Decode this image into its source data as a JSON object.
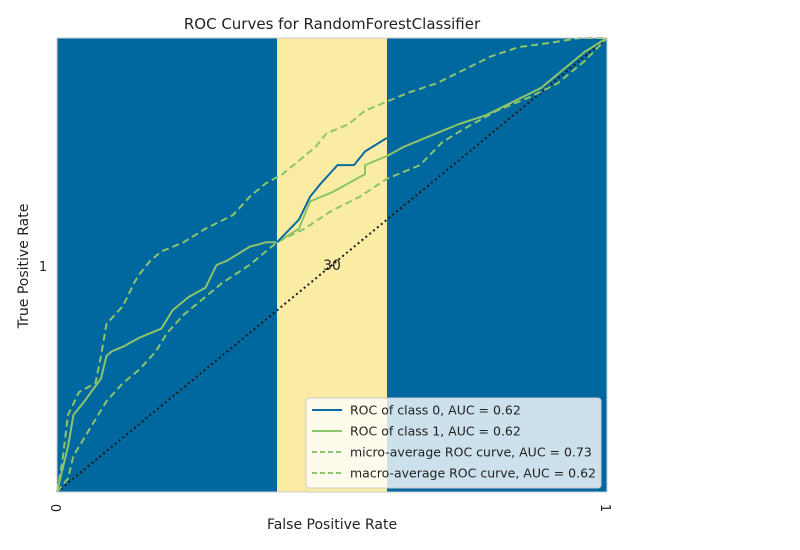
{
  "chart_data": {
    "type": "line",
    "title": "ROC Curves for RandomForestClassifier",
    "xlabel": "False Positive Rate",
    "ylabel": "True Positive Rate",
    "xlim": [
      0,
      1
    ],
    "ylim": [
      0,
      1
    ],
    "x_ticks": [
      "0",
      "1"
    ],
    "y_tick": {
      "label": "1",
      "value": 0.5
    },
    "grid": false,
    "legend_position": "lower-right",
    "colors": {
      "background": "#00689f",
      "band": "#fbeca4",
      "class0": "#0b6aa2",
      "green": "#8cc46a",
      "diagonal": "#1a1a1a",
      "frame": "#cccccc"
    },
    "band": {
      "x": [
        0.4,
        0.6
      ]
    },
    "annotation": {
      "text": "30",
      "x": 0.5,
      "y": 0.5
    },
    "series": [
      {
        "name": "ROC of class 0, AUC = 0.62",
        "style": "solid",
        "color": "#0b6aa2",
        "points": [
          [
            0.4,
            0.55
          ],
          [
            0.44,
            0.6
          ],
          [
            0.46,
            0.65
          ],
          [
            0.48,
            0.68
          ],
          [
            0.51,
            0.72
          ],
          [
            0.54,
            0.72
          ],
          [
            0.56,
            0.75
          ],
          [
            0.6,
            0.78
          ]
        ]
      },
      {
        "name": "ROC of class 1, AUC = 0.62",
        "style": "solid",
        "color": "#8cc46a",
        "points": [
          [
            0,
            0
          ],
          [
            0.01,
            0.05
          ],
          [
            0.02,
            0.1
          ],
          [
            0.03,
            0.17
          ],
          [
            0.05,
            0.2
          ],
          [
            0.08,
            0.25
          ],
          [
            0.09,
            0.3
          ],
          [
            0.1,
            0.31
          ],
          [
            0.12,
            0.32
          ],
          [
            0.15,
            0.34
          ],
          [
            0.19,
            0.36
          ],
          [
            0.21,
            0.4
          ],
          [
            0.24,
            0.43
          ],
          [
            0.27,
            0.45
          ],
          [
            0.29,
            0.5
          ],
          [
            0.31,
            0.51
          ],
          [
            0.35,
            0.54
          ],
          [
            0.38,
            0.55
          ],
          [
            0.4,
            0.55
          ],
          [
            0.44,
            0.58
          ],
          [
            0.46,
            0.64
          ],
          [
            0.5,
            0.66
          ],
          [
            0.53,
            0.68
          ],
          [
            0.56,
            0.7
          ],
          [
            0.56,
            0.72
          ],
          [
            0.6,
            0.74
          ],
          [
            0.63,
            0.76
          ],
          [
            0.69,
            0.79
          ],
          [
            0.73,
            0.81
          ],
          [
            0.78,
            0.83
          ],
          [
            0.83,
            0.86
          ],
          [
            0.88,
            0.89
          ],
          [
            0.92,
            0.93
          ],
          [
            0.96,
            0.97
          ],
          [
            1,
            1
          ]
        ]
      },
      {
        "name": "micro-average ROC curve, AUC = 0.73",
        "style": "dashed",
        "color": "#8cc46a",
        "points": [
          [
            0,
            0
          ],
          [
            0.01,
            0.07
          ],
          [
            0.02,
            0.17
          ],
          [
            0.04,
            0.22
          ],
          [
            0.07,
            0.24
          ],
          [
            0.08,
            0.3
          ],
          [
            0.09,
            0.37
          ],
          [
            0.12,
            0.41
          ],
          [
            0.14,
            0.46
          ],
          [
            0.15,
            0.48
          ],
          [
            0.17,
            0.51
          ],
          [
            0.19,
            0.53
          ],
          [
            0.23,
            0.55
          ],
          [
            0.27,
            0.58
          ],
          [
            0.32,
            0.61
          ],
          [
            0.35,
            0.65
          ],
          [
            0.38,
            0.68
          ],
          [
            0.41,
            0.7
          ],
          [
            0.44,
            0.73
          ],
          [
            0.47,
            0.76
          ],
          [
            0.49,
            0.79
          ],
          [
            0.53,
            0.81
          ],
          [
            0.56,
            0.84
          ],
          [
            0.6,
            0.86
          ],
          [
            0.64,
            0.88
          ],
          [
            0.69,
            0.9
          ],
          [
            0.74,
            0.93
          ],
          [
            0.79,
            0.96
          ],
          [
            0.84,
            0.98
          ],
          [
            0.9,
            0.99
          ],
          [
            0.95,
            1
          ],
          [
            1,
            1
          ]
        ]
      },
      {
        "name": "macro-average ROC curve, AUC = 0.62",
        "style": "dashed",
        "color": "#8cc46a",
        "points": [
          [
            0,
            0
          ],
          [
            0.02,
            0.03
          ],
          [
            0.03,
            0.08
          ],
          [
            0.06,
            0.14
          ],
          [
            0.09,
            0.2
          ],
          [
            0.12,
            0.24
          ],
          [
            0.15,
            0.27
          ],
          [
            0.18,
            0.31
          ],
          [
            0.2,
            0.35
          ],
          [
            0.23,
            0.39
          ],
          [
            0.27,
            0.43
          ],
          [
            0.3,
            0.46
          ],
          [
            0.35,
            0.5
          ],
          [
            0.4,
            0.55
          ],
          [
            0.45,
            0.58
          ],
          [
            0.5,
            0.62
          ],
          [
            0.55,
            0.65
          ],
          [
            0.6,
            0.69
          ],
          [
            0.66,
            0.72
          ],
          [
            0.7,
            0.77
          ],
          [
            0.74,
            0.8
          ],
          [
            0.8,
            0.84
          ],
          [
            0.86,
            0.87
          ],
          [
            0.91,
            0.9
          ],
          [
            0.96,
            0.95
          ],
          [
            1,
            1
          ]
        ]
      }
    ],
    "diagonal": {
      "style": "dotted",
      "color": "#1a1a1a",
      "points": [
        [
          0,
          0
        ],
        [
          1,
          1
        ]
      ]
    }
  }
}
